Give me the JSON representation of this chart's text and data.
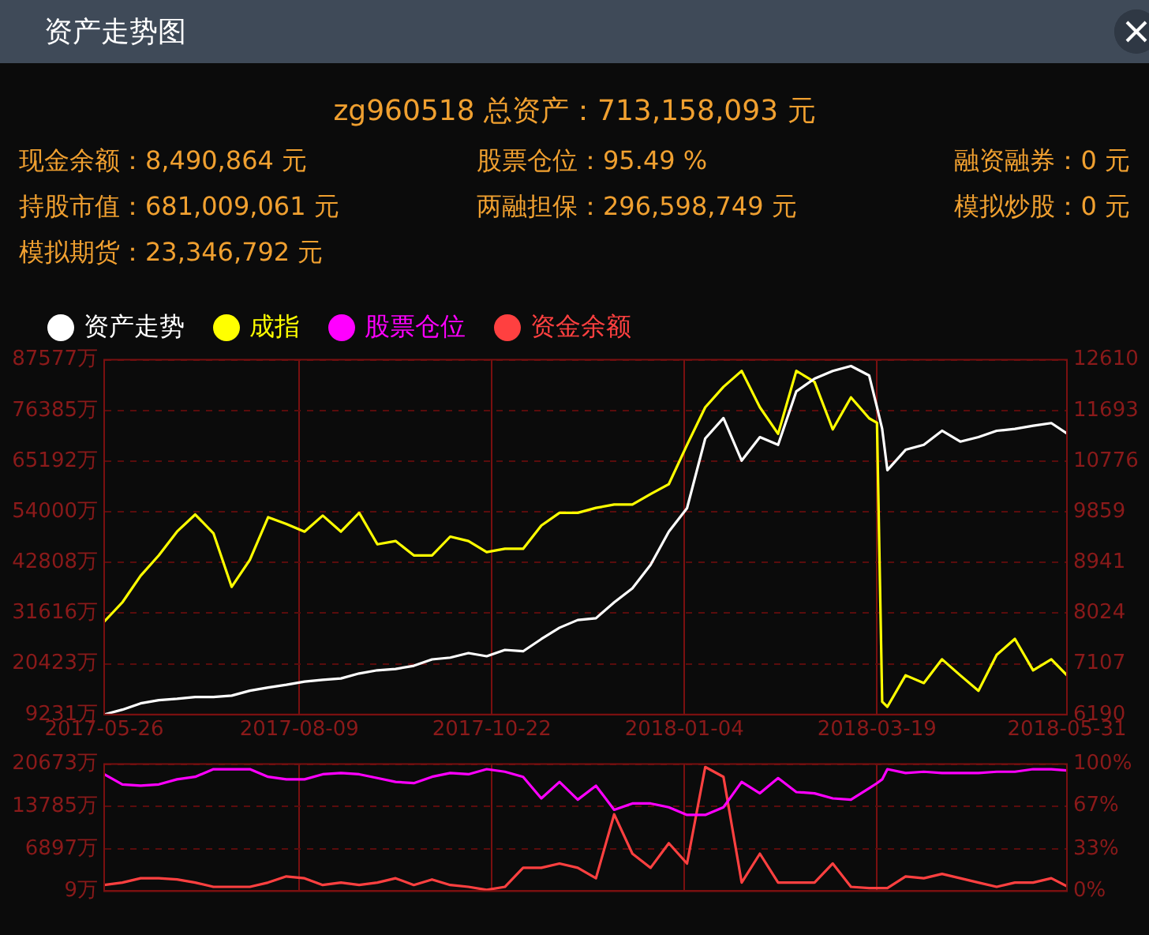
{
  "chart_data": [
    {
      "type": "line",
      "title": "资产走势图",
      "subtitle": "zg960518 总资产：713,158,093 元",
      "annotations": [
        "现金余额：8,490,864 元",
        "股票仓位：95.49 %",
        "融资融券：0 元",
        "持股市值：681,009,061 元",
        "两融担保：296,598,749 元",
        "模拟炒股：0 元",
        "模拟期货：23,346,792 元"
      ],
      "x": [
        "2017-05-26",
        "2017-06-02",
        "2017-06-09",
        "2017-06-16",
        "2017-06-23",
        "2017-06-30",
        "2017-07-07",
        "2017-07-14",
        "2017-07-21",
        "2017-07-28",
        "2017-08-04",
        "2017-08-11",
        "2017-08-18",
        "2017-08-25",
        "2017-09-01",
        "2017-09-08",
        "2017-09-15",
        "2017-09-22",
        "2017-09-29",
        "2017-10-06",
        "2017-10-13",
        "2017-10-20",
        "2017-10-27",
        "2017-11-03",
        "2017-11-10",
        "2017-11-17",
        "2017-11-24",
        "2017-12-01",
        "2017-12-08",
        "2017-12-15",
        "2017-12-22",
        "2017-12-29",
        "2018-01-05",
        "2018-01-12",
        "2018-01-19",
        "2018-01-26",
        "2018-02-02",
        "2018-02-09",
        "2018-02-16",
        "2018-02-23",
        "2018-03-02",
        "2018-03-09",
        "2018-03-16",
        "2018-03-19",
        "2018-03-21",
        "2018-03-23",
        "2018-03-30",
        "2018-04-06",
        "2018-04-13",
        "2018-04-20",
        "2018-04-27",
        "2018-05-04",
        "2018-05-11",
        "2018-05-18",
        "2018-05-25",
        "2018-05-31"
      ],
      "series": [
        {
          "name": "资产走势",
          "color": "#ffffff",
          "values": [
            9231,
            10300,
            11700,
            12400,
            12700,
            13100,
            13100,
            13400,
            14500,
            15200,
            15800,
            16500,
            16900,
            17200,
            18300,
            19000,
            19300,
            20000,
            21400,
            21800,
            22800,
            22100,
            23500,
            23200,
            25900,
            28400,
            30100,
            30500,
            34000,
            37100,
            42300,
            49600,
            54800,
            70200,
            74700,
            65300,
            70500,
            68800,
            80600,
            83400,
            85100,
            86200,
            84100,
            77100,
            72300,
            63200,
            67700,
            68800,
            71900,
            69500,
            70500,
            71900,
            72300,
            73000,
            73600,
            71300
          ]
        },
        {
          "name": "成指",
          "color": "#ffff00",
          "axis": "y2",
          "values": [
            7870,
            8220,
            8700,
            9070,
            9500,
            9810,
            9470,
            8500,
            8990,
            9760,
            9640,
            9500,
            9790,
            9500,
            9840,
            9270,
            9330,
            9070,
            9070,
            9410,
            9330,
            9130,
            9190,
            9190,
            9610,
            9840,
            9840,
            9930,
            9990,
            9990,
            10180,
            10360,
            11070,
            11750,
            12120,
            12410,
            11750,
            11270,
            12410,
            12210,
            11350,
            11930,
            11550,
            11470,
            6420,
            6330,
            6900,
            6760,
            7190,
            6900,
            6620,
            7270,
            7560,
            6990,
            7190,
            6900
          ]
        }
      ],
      "xlim": [
        "2017-05-26",
        "2018-05-31"
      ],
      "xticks": [
        "2017-05-26",
        "2017-08-09",
        "2017-10-22",
        "2018-01-04",
        "2018-03-19",
        "2018-05-31"
      ],
      "ylim": [
        9231,
        87577
      ],
      "yticks": [
        {
          "value": 9231,
          "label": "9231万"
        },
        {
          "value": 20423,
          "label": "20423万"
        },
        {
          "value": 31616,
          "label": "31616万"
        },
        {
          "value": 42808,
          "label": "42808万"
        },
        {
          "value": 54000,
          "label": "54000万"
        },
        {
          "value": 65192,
          "label": "65192万"
        },
        {
          "value": 76385,
          "label": "76385万"
        },
        {
          "value": 87577,
          "label": "87577万"
        }
      ],
      "y2lim": [
        6190,
        12610
      ],
      "y2ticks": [
        6190,
        7107,
        8024,
        8941,
        9859,
        10776,
        11693,
        12610
      ],
      "grid": true,
      "legend": "top left"
    },
    {
      "type": "line",
      "x": [
        "2017-05-26",
        "2017-06-02",
        "2017-06-09",
        "2017-06-16",
        "2017-06-23",
        "2017-06-30",
        "2017-07-07",
        "2017-07-14",
        "2017-07-21",
        "2017-07-28",
        "2017-08-04",
        "2017-08-11",
        "2017-08-18",
        "2017-08-25",
        "2017-09-01",
        "2017-09-08",
        "2017-09-15",
        "2017-09-22",
        "2017-09-29",
        "2017-10-06",
        "2017-10-13",
        "2017-10-20",
        "2017-10-27",
        "2017-11-03",
        "2017-11-10",
        "2017-11-17",
        "2017-11-24",
        "2017-12-01",
        "2017-12-08",
        "2017-12-15",
        "2017-12-22",
        "2017-12-29",
        "2018-01-05",
        "2018-01-12",
        "2018-01-19",
        "2018-01-26",
        "2018-02-02",
        "2018-02-09",
        "2018-02-16",
        "2018-02-23",
        "2018-03-02",
        "2018-03-09",
        "2018-03-16",
        "2018-03-19",
        "2018-03-21",
        "2018-03-23",
        "2018-03-30",
        "2018-04-06",
        "2018-04-13",
        "2018-04-20",
        "2018-04-27",
        "2018-05-04",
        "2018-05-11",
        "2018-05-18",
        "2018-05-25",
        "2018-05-31"
      ],
      "series": [
        {
          "name": "股票仓位",
          "color": "#ff00ff",
          "axis": "y2",
          "values": [
            92,
            84,
            83,
            84,
            88,
            90,
            96,
            96,
            96,
            90,
            88,
            88,
            92,
            93,
            92,
            89,
            86,
            85,
            90,
            93,
            92,
            96,
            94,
            90,
            73,
            86,
            72,
            83,
            64,
            69,
            69,
            66,
            60,
            60,
            66,
            86,
            77,
            89,
            78,
            77,
            73,
            72,
            81,
            85,
            88,
            96,
            93,
            94,
            93,
            93,
            93,
            94,
            94,
            96,
            96,
            95
          ]
        },
        {
          "name": "资金余额",
          "color": "#ff4040",
          "values": [
            1000,
            1400,
            2100,
            2100,
            1900,
            1400,
            700,
            700,
            700,
            1400,
            2400,
            2100,
            1000,
            1400,
            1000,
            1400,
            2100,
            1000,
            1900,
            1000,
            700,
            200,
            700,
            3800,
            3800,
            4500,
            3800,
            2100,
            12500,
            6100,
            3800,
            7800,
            4500,
            20200,
            18600,
            1400,
            6100,
            1400,
            1400,
            1400,
            4500,
            700,
            500,
            500,
            500,
            500,
            2400,
            2100,
            2800,
            2100,
            1400,
            700,
            1400,
            1400,
            2100,
            800
          ]
        }
      ],
      "xlim": [
        "2017-05-26",
        "2018-05-31"
      ],
      "xticks": [
        "2017-05-26",
        "2017-08-09",
        "2017-10-22",
        "2018-01-04",
        "2018-03-19",
        "2018-05-31"
      ],
      "ylim": [
        9,
        20673
      ],
      "yticks": [
        {
          "value": 9,
          "label": "9万"
        },
        {
          "value": 6897,
          "label": "6897万"
        },
        {
          "value": 13785,
          "label": "13785万"
        },
        {
          "value": 20673,
          "label": "20673万"
        }
      ],
      "y2lim": [
        0,
        100
      ],
      "y2ticks": [
        {
          "value": 0,
          "label": "0%"
        },
        {
          "value": 33,
          "label": "33%"
        },
        {
          "value": 67,
          "label": "67%"
        },
        {
          "value": 100,
          "label": "100%"
        }
      ],
      "tick_labels": "y",
      "grid": true,
      "legend": "top left"
    }
  ]
}
